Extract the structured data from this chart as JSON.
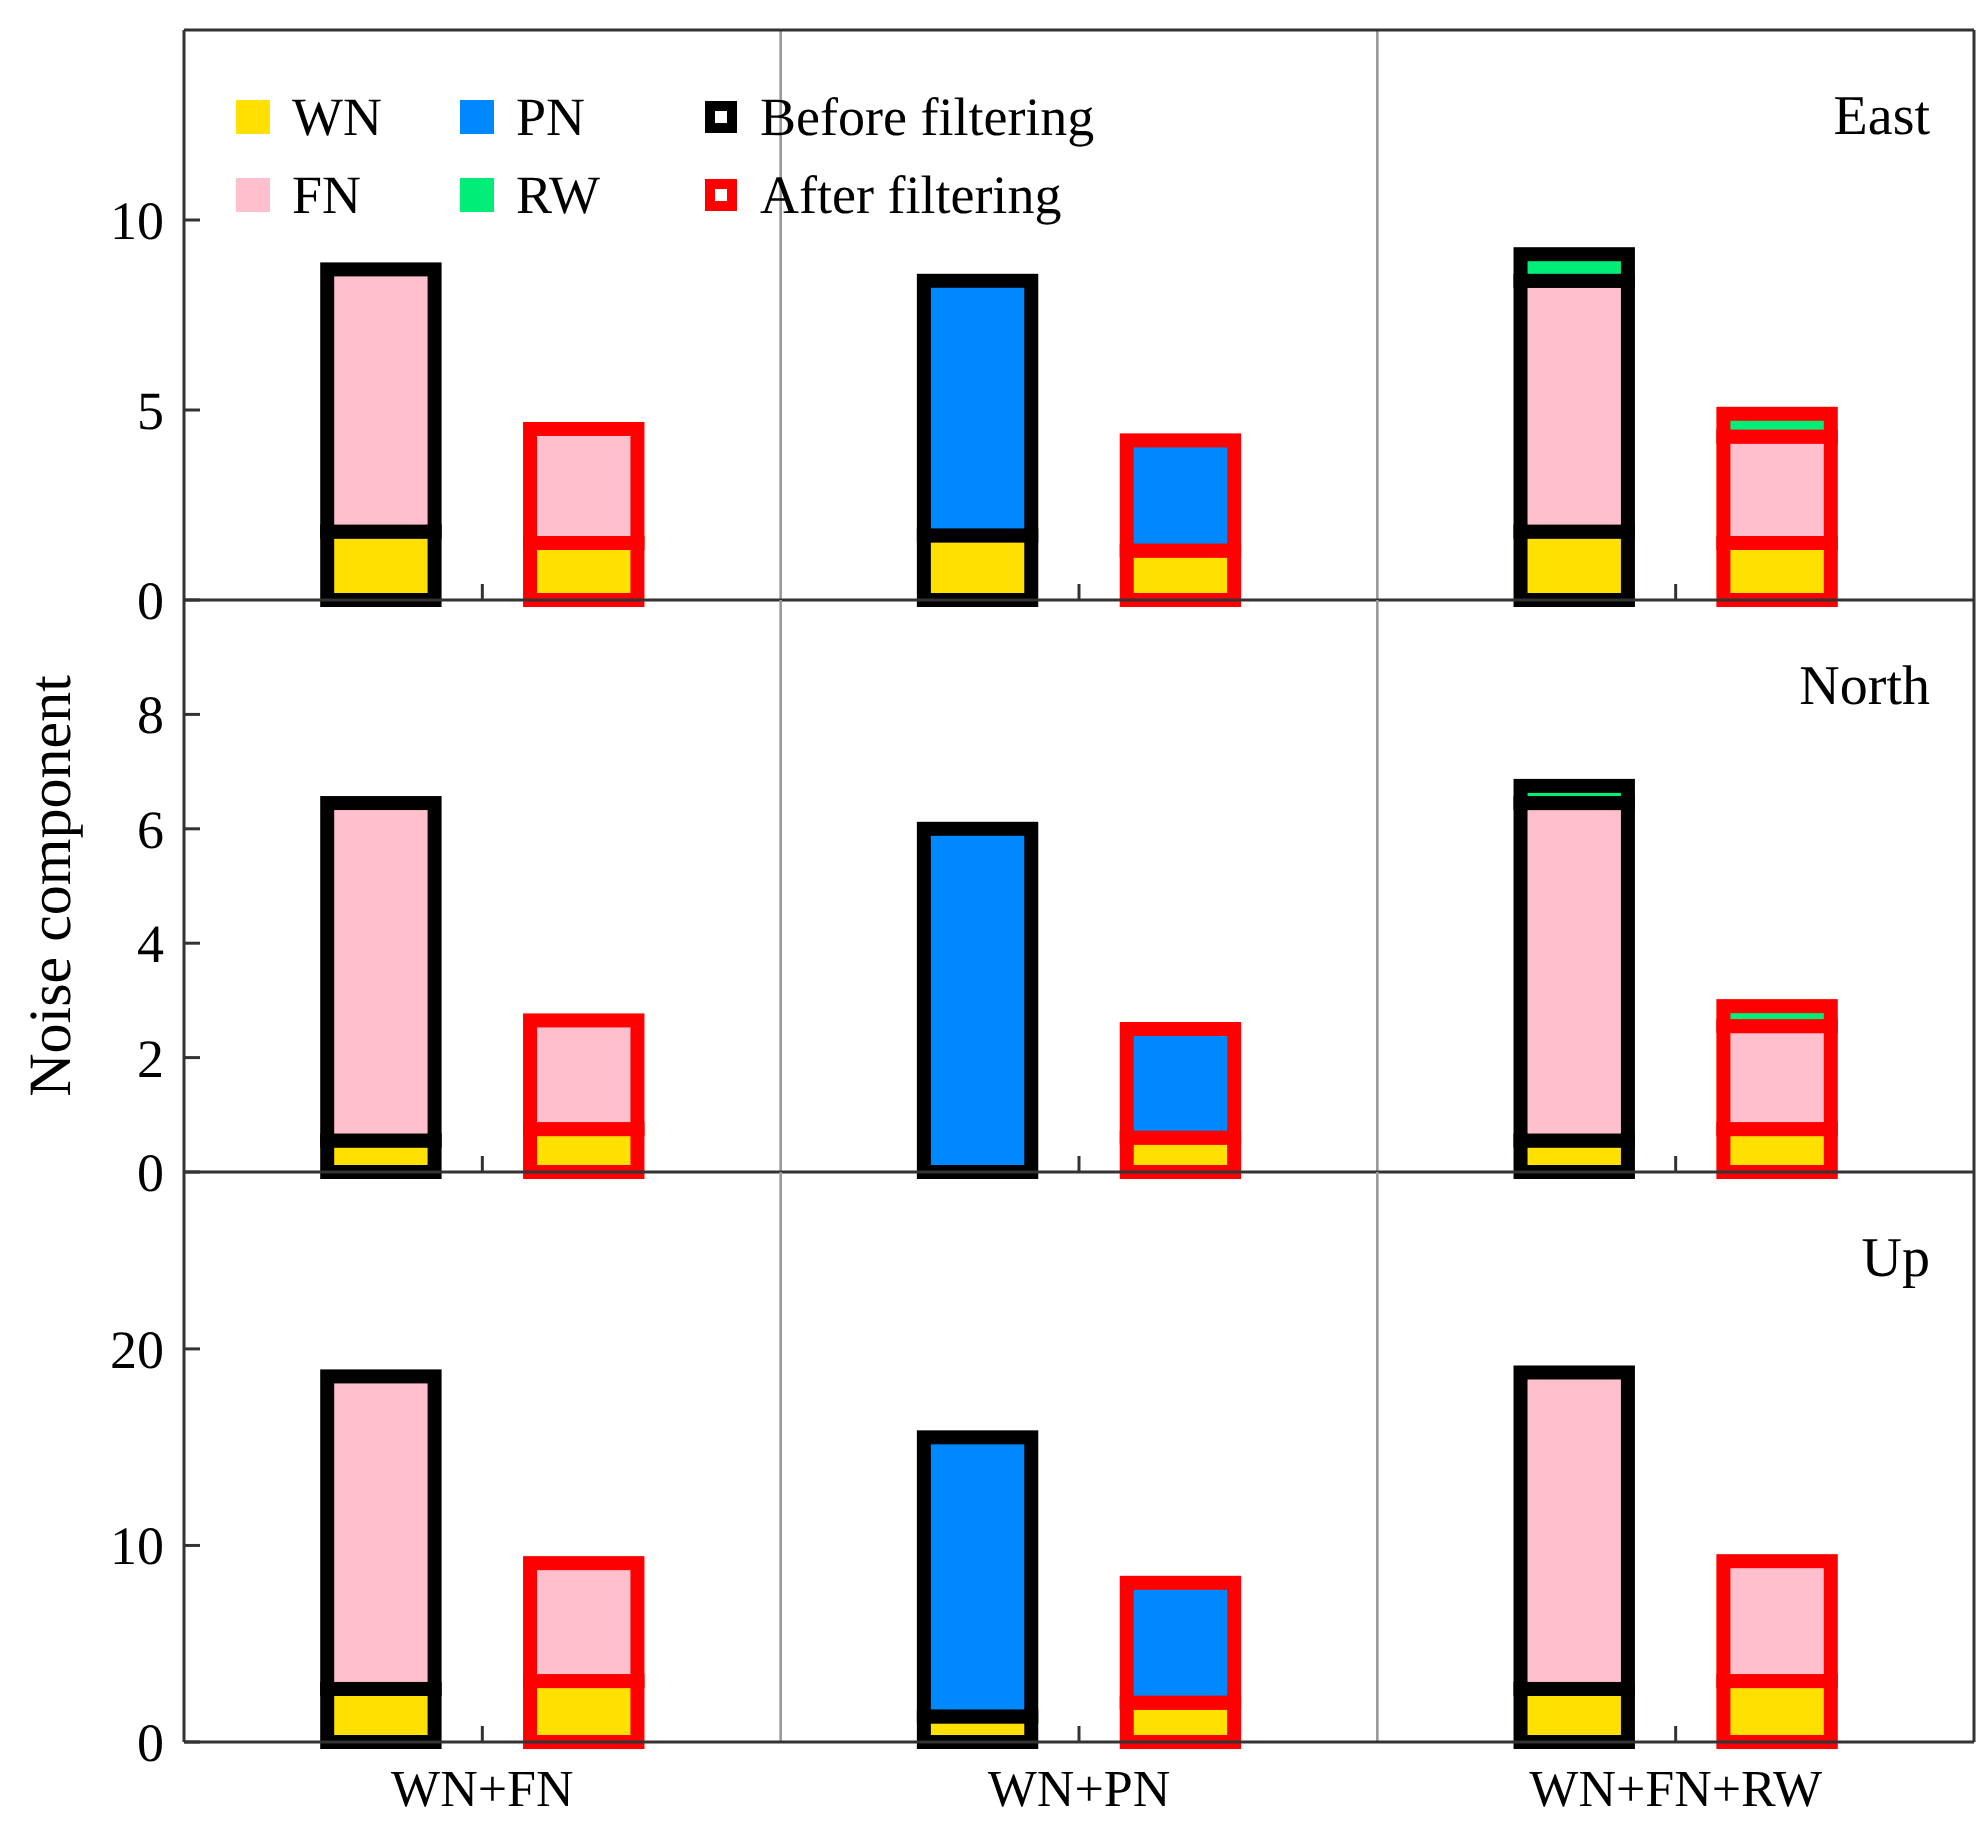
{
  "chart_data": [
    {
      "type": "bar",
      "title": "East",
      "stacked": true,
      "legend": "top left",
      "tick_labels": "y",
      "categories": [
        null,
        null,
        null,
        null,
        null,
        null
      ],
      "ylim": [
        0,
        15
      ],
      "yticks": [
        0,
        5,
        10
      ],
      "series": [
        {
          "name": "Before filtering",
          "color": "#000000",
          "values": [
            null,
            null,
            null,
            null,
            null,
            null
          ]
        },
        {
          "name": "After filtering",
          "color": "#ff0000",
          "values": [
            null,
            null,
            null,
            null,
            null,
            null
          ]
        },
        {
          "name": "WN",
          "color": "#ffe000",
          "values": [
            1.8,
            1.5,
            1.7,
            1.3,
            1.8,
            1.5
          ]
        },
        {
          "name": "FN",
          "color": "#ffbfcc",
          "values": [
            6.9,
            3.0,
            null,
            null,
            6.6,
            2.8
          ]
        },
        {
          "name": "PN",
          "color": "#0088ff",
          "values": [
            null,
            null,
            6.7,
            2.9,
            null,
            null
          ]
        },
        {
          "name": "RW",
          "color": "#00ee77",
          "values": [
            null,
            null,
            null,
            null,
            0.7,
            0.6
          ]
        }
      ]
    },
    {
      "type": "bar",
      "title": "North",
      "ylabel": "Noise component",
      "stacked": true,
      "legend": false,
      "tick_labels": "y",
      "categories": [
        null,
        null,
        null,
        null,
        null,
        null
      ],
      "ylim": [
        0,
        10
      ],
      "yticks": [
        0,
        2,
        4,
        6,
        8
      ],
      "series": [
        {
          "color": "#000000",
          "values": [
            null,
            null,
            null,
            null,
            null,
            null
          ]
        },
        {
          "color": "#ff0000",
          "values": [
            null,
            null,
            null,
            null,
            null,
            null
          ]
        },
        {
          "color": "#ffe000",
          "values": [
            0.55,
            0.75,
            null,
            0.6,
            0.55,
            0.75
          ]
        },
        {
          "color": "#ffbfcc",
          "values": [
            5.9,
            1.9,
            null,
            null,
            5.9,
            1.8
          ]
        },
        {
          "color": "#0088ff",
          "values": [
            null,
            null,
            6.0,
            1.9,
            null,
            null
          ]
        },
        {
          "color": "#00ee77",
          "values": [
            null,
            null,
            null,
            null,
            0.3,
            0.35
          ]
        }
      ]
    },
    {
      "type": "bar",
      "title": "Up",
      "stacked": true,
      "legend": false,
      "tick_labels": "y",
      "categories": [
        null,
        null,
        null,
        null,
        null,
        null
      ],
      "ylim": [
        0,
        29
      ],
      "yticks": [
        0,
        10,
        20
      ],
      "annotations": [
        "WN+FN",
        "WN+PN",
        "WN+FN+RW"
      ],
      "series": [
        {
          "color": "#000000",
          "values": [
            null,
            null,
            null,
            null,
            null,
            null
          ]
        },
        {
          "color": "#ff0000",
          "values": [
            null,
            null,
            null,
            null,
            null,
            null
          ]
        },
        {
          "color": "#ffe000",
          "values": [
            2.7,
            3.1,
            1.3,
            2.0,
            2.7,
            3.1
          ]
        },
        {
          "color": "#ffbfcc",
          "values": [
            15.9,
            6.0,
            null,
            null,
            16.1,
            6.1
          ]
        },
        {
          "color": "#0088ff",
          "values": [
            null,
            null,
            14.2,
            6.1,
            null,
            null
          ]
        }
      ]
    }
  ]
}
